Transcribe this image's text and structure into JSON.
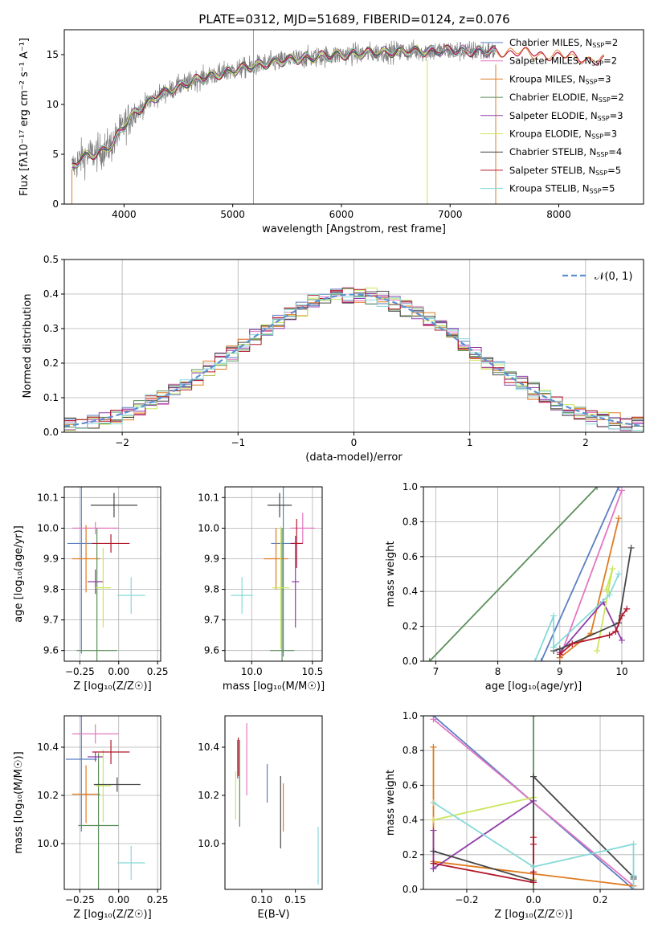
{
  "title": "PLATE=0312, MJD=51689, FIBERID=0124, z=0.076",
  "colors": {
    "Chabrier MILES": "#5b7fc2",
    "Salpeter MILES": "#e377c2",
    "Kroupa MILES": "#e07b1f",
    "Chabrier ELODIE": "#5a8f5a",
    "Salpeter ELODIE": "#8e3ca8",
    "Kroupa ELODIE": "#c9e65a",
    "Chabrier STELIB": "#474747",
    "Salpeter STELIB": "#b2182b",
    "Kroupa STELIB": "#86dad8"
  },
  "chart_data": [
    {
      "id": "spectrum",
      "type": "line",
      "title": "PLATE=0312, MJD=51689, FIBERID=0124, z=0.076",
      "xlabel": "wavelength [Angstrom, rest frame]",
      "ylabel": "Flux [fλ10⁻¹⁷ erg cm⁻² s⁻¹ A⁻¹]",
      "xlim": [
        3450,
        8780
      ],
      "ylim": [
        0,
        17.5
      ],
      "xticks": [
        4000,
        5000,
        6000,
        7000,
        8000
      ],
      "yticks": [
        0,
        5,
        10,
        15
      ],
      "grid": false,
      "legend_position": "right",
      "legend": [
        {
          "label": "Chabrier MILES, N",
          "sub": "SSP",
          "suffix": "=2"
        },
        {
          "label": "Salpeter MILES, N",
          "sub": "SSP",
          "suffix": "=2"
        },
        {
          "label": "Kroupa MILES, N",
          "sub": "SSP",
          "suffix": "=3"
        },
        {
          "label": "Chabrier ELODIE, N",
          "sub": "SSP",
          "suffix": "=2"
        },
        {
          "label": "Salpeter ELODIE, N",
          "sub": "SSP",
          "suffix": "=3"
        },
        {
          "label": "Kroupa ELODIE, N",
          "sub": "SSP",
          "suffix": "=3"
        },
        {
          "label": "Chabrier STELIB, N",
          "sub": "SSP",
          "suffix": "=4"
        },
        {
          "label": "Salpeter STELIB, N",
          "sub": "SSP",
          "suffix": "=5"
        },
        {
          "label": "Kroupa STELIB, N",
          "sub": "SSP",
          "suffix": "=5"
        }
      ],
      "continuum": {
        "x": [
          3520,
          3600,
          3700,
          3800,
          3900,
          4000,
          4100,
          4200,
          4300,
          4500,
          4700,
          5000,
          5300,
          5600,
          6000,
          6500,
          7000,
          7500,
          8000,
          8400
        ],
        "y": [
          3.6,
          4.6,
          5.0,
          5.3,
          6.1,
          7.9,
          9.2,
          10.0,
          10.8,
          11.8,
          12.6,
          13.4,
          14.1,
          14.6,
          15.0,
          15.3,
          15.4,
          15.3,
          14.9,
          14.4
        ]
      },
      "observed_range": [
        3520,
        7420
      ],
      "model_range": [
        3520,
        8420
      ]
    },
    {
      "id": "residuals",
      "type": "line",
      "xlabel": "(data-model)/error",
      "ylabel": "Normed distribution",
      "xlim": [
        -2.5,
        2.5
      ],
      "ylim": [
        0,
        0.5
      ],
      "xticks": [
        -2,
        -1,
        0,
        1,
        2
      ],
      "yticks": [
        0.0,
        0.1,
        0.2,
        0.3,
        0.4,
        0.5
      ],
      "grid": true,
      "legend_position": "top-right",
      "legend": [
        {
          "label": "𝒩(0, 1)"
        }
      ],
      "bin_width": 0.1
    },
    {
      "id": "age-vs-Z",
      "type": "scatter",
      "xlabel": "Z [log₁₀(Z/Z☉)]",
      "ylabel": "age  [log₁₀(age/yr)]",
      "xlim": [
        -0.35,
        0.27
      ],
      "ylim": [
        9.565,
        10.135
      ],
      "xticks": [
        -0.25,
        0.0,
        0.25
      ],
      "xticklabels": [
        "−0.25",
        "0.00",
        "0.25"
      ],
      "yticks": [
        9.6,
        9.7,
        9.8,
        9.9,
        10.0,
        10.1
      ],
      "grid": true,
      "points": [
        {
          "model": "Chabrier MILES",
          "x": -0.24,
          "xerr": 0.09,
          "y": 9.95,
          "yerr": 0.36
        },
        {
          "model": "Salpeter MILES",
          "x": -0.15,
          "xerr": 0.15,
          "y": 10.0,
          "yerr": 0.02
        },
        {
          "model": "Kroupa MILES",
          "x": -0.21,
          "xerr": 0.09,
          "y": 9.9,
          "yerr": 0.11
        },
        {
          "model": "Chabrier ELODIE",
          "x": -0.14,
          "xerr": 0.13,
          "y": 9.6,
          "yerr": 0.4
        },
        {
          "model": "Salpeter ELODIE",
          "x": -0.15,
          "xerr": 0.05,
          "y": 9.825,
          "yerr": 0.04
        },
        {
          "model": "Kroupa ELODIE",
          "x": -0.1,
          "xerr": 0.05,
          "y": 9.805,
          "yerr": 0.13
        },
        {
          "model": "Chabrier STELIB",
          "x": -0.03,
          "xerr": 0.15,
          "y": 10.075,
          "yerr": 0.04
        },
        {
          "model": "Salpeter STELIB",
          "x": -0.05,
          "xerr": 0.12,
          "y": 9.95,
          "yerr": 0.03
        },
        {
          "model": "Kroupa STELIB",
          "x": 0.08,
          "xerr": 0.09,
          "y": 9.78,
          "yerr": 0.06
        }
      ]
    },
    {
      "id": "age-vs-mass",
      "type": "scatter",
      "xlabel": "mass [log₁₀(M/M☉)]",
      "ylabel": "",
      "xlim": [
        9.78,
        10.58
      ],
      "ylim": [
        9.565,
        10.135
      ],
      "xticks": [
        10.0,
        10.5
      ],
      "xticklabels": [
        "10.0",
        "10.5"
      ],
      "yticks": [
        9.6,
        9.7,
        9.8,
        9.9,
        10.0,
        10.1
      ],
      "grid": true,
      "points": [
        {
          "model": "Chabrier MILES",
          "x": 10.26,
          "xerr": 0.1,
          "y": 9.95,
          "yerr": 0.37
        },
        {
          "model": "Salpeter MILES",
          "x": 10.42,
          "xerr": 0.1,
          "y": 10.0,
          "yerr": 0.05
        },
        {
          "model": "Kroupa MILES",
          "x": 10.2,
          "xerr": 0.1,
          "y": 9.9,
          "yerr": 0.1
        },
        {
          "model": "Chabrier ELODIE",
          "x": 10.25,
          "xerr": 0.1,
          "y": 9.6,
          "yerr": 0.4
        },
        {
          "model": "Salpeter ELODIE",
          "x": 10.36,
          "xerr": 0.03,
          "y": 9.825,
          "yerr": 0.15
        },
        {
          "model": "Kroupa ELODIE",
          "x": 10.24,
          "xerr": 0.07,
          "y": 9.805,
          "yerr": 0.2
        },
        {
          "model": "Chabrier STELIB",
          "x": 10.23,
          "xerr": 0.1,
          "y": 10.075,
          "yerr": 0.04
        },
        {
          "model": "Salpeter STELIB",
          "x": 10.37,
          "xerr": 0.05,
          "y": 9.95,
          "yerr": 0.08
        },
        {
          "model": "Kroupa STELIB",
          "x": 9.92,
          "xerr": 0.09,
          "y": 9.78,
          "yerr": 0.06
        }
      ]
    },
    {
      "id": "weight-vs-age",
      "type": "line",
      "xlabel": "age  [log₁₀(age/yr)]",
      "ylabel": "mass weight",
      "xlim": [
        6.8,
        10.35
      ],
      "ylim": [
        0,
        1.0
      ],
      "xticks": [
        7,
        8,
        9,
        10
      ],
      "yticks": [
        0.0,
        0.2,
        0.4,
        0.6,
        0.8,
        1.0
      ],
      "grid": true,
      "series": [
        {
          "model": "Chabrier MILES",
          "x": [
            8.7,
            9.95
          ],
          "y": [
            0.0,
            1.0
          ]
        },
        {
          "model": "Salpeter MILES",
          "x": [
            9.0,
            10.0
          ],
          "y": [
            0.02,
            0.98
          ]
        },
        {
          "model": "Kroupa MILES",
          "x": [
            9.0,
            9.5,
            9.95
          ],
          "y": [
            0.02,
            0.16,
            0.82
          ]
        },
        {
          "model": "Chabrier ELODIE",
          "x": [
            6.9,
            9.6
          ],
          "y": [
            0.0,
            1.0
          ]
        },
        {
          "model": "Salpeter ELODIE",
          "x": [
            9.0,
            9.7,
            10.0
          ],
          "y": [
            0.05,
            0.34,
            0.12
          ]
        },
        {
          "model": "Kroupa ELODIE",
          "x": [
            9.6,
            9.85,
            9.75
          ],
          "y": [
            0.06,
            0.53,
            0.41
          ]
        },
        {
          "model": "Chabrier STELIB",
          "x": [
            8.9,
            9.0,
            9.95,
            10.15
          ],
          "y": [
            0.06,
            0.07,
            0.22,
            0.65
          ]
        },
        {
          "model": "Salpeter STELIB",
          "x": [
            9.0,
            9.2,
            9.8,
            9.9,
            10.0,
            10.08
          ],
          "y": [
            0.04,
            0.1,
            0.15,
            0.17,
            0.26,
            0.3
          ]
        },
        {
          "model": "Kroupa STELIB",
          "x": [
            8.6,
            8.9,
            8.9,
            9.8,
            9.95
          ],
          "y": [
            0.0,
            0.26,
            0.08,
            0.38,
            0.5
          ]
        }
      ]
    },
    {
      "id": "mass-vs-Z",
      "type": "scatter",
      "xlabel": "Z [log₁₀(Z/Z☉)]",
      "ylabel": "mass [log₁₀(M/M☉)]",
      "xlim": [
        -0.35,
        0.27
      ],
      "ylim": [
        9.81,
        10.53
      ],
      "xticks": [
        -0.25,
        0.0,
        0.25
      ],
      "xticklabels": [
        "−0.25",
        "0.00",
        "0.25"
      ],
      "yticks": [
        10.0,
        10.2,
        10.4
      ],
      "grid": true,
      "points": [
        {
          "model": "Chabrier MILES",
          "x": -0.24,
          "xerr": 0.1,
          "y": 10.35,
          "yerr": 0.3
        },
        {
          "model": "Salpeter MILES",
          "x": -0.15,
          "xerr": 0.15,
          "y": 10.455,
          "yerr": 0.04
        },
        {
          "model": "Kroupa MILES",
          "x": -0.21,
          "xerr": 0.09,
          "y": 10.205,
          "yerr": 0.12
        },
        {
          "model": "Chabrier ELODIE",
          "x": -0.13,
          "xerr": 0.13,
          "y": 10.075,
          "yerr": 0.3
        },
        {
          "model": "Salpeter ELODIE",
          "x": -0.15,
          "xerr": 0.05,
          "y": 10.36,
          "yerr": 0.02
        },
        {
          "model": "Kroupa ELODIE",
          "x": -0.1,
          "xerr": 0.05,
          "y": 10.24,
          "yerr": 0.15
        },
        {
          "model": "Chabrier STELIB",
          "x": -0.01,
          "xerr": 0.15,
          "y": 10.245,
          "yerr": 0.03
        },
        {
          "model": "Salpeter STELIB",
          "x": -0.05,
          "xerr": 0.12,
          "y": 10.38,
          "yerr": 0.05
        },
        {
          "model": "Kroupa STELIB",
          "x": 0.08,
          "xerr": 0.09,
          "y": 9.92,
          "yerr": 0.07
        }
      ]
    },
    {
      "id": "mass-vs-ebv",
      "type": "scatter",
      "xlabel": "E(B-V)",
      "ylabel": "",
      "xlim": [
        0.045,
        0.19
      ],
      "ylim": [
        9.81,
        10.53
      ],
      "xticks": [
        0.1,
        0.15
      ],
      "xticklabels": [
        "0.10",
        "0.15"
      ],
      "yticks": [
        10.0,
        10.2,
        10.4
      ],
      "grid": false,
      "points": [
        {
          "model": "Chabrier MILES",
          "x": 0.108,
          "y": 10.25,
          "yerr": 0.08
        },
        {
          "model": "Salpeter MILES",
          "x": 0.0775,
          "y": 10.35,
          "yerr": 0.15
        },
        {
          "model": "Kroupa MILES",
          "x": 0.132,
          "y": 10.15,
          "yerr": 0.1
        },
        {
          "model": "Chabrier ELODIE",
          "x": 0.067,
          "y": 10.25,
          "yerr": 0.18
        },
        {
          "model": "Salpeter ELODIE",
          "x": 0.064,
          "y": 10.35,
          "yerr": 0.08
        },
        {
          "model": "Kroupa ELODIE",
          "x": 0.061,
          "y": 10.2,
          "yerr": 0.1
        },
        {
          "model": "Chabrier STELIB",
          "x": 0.128,
          "y": 10.13,
          "yerr": 0.15
        },
        {
          "model": "Salpeter STELIB",
          "x": 0.065,
          "y": 10.36,
          "yerr": 0.08
        },
        {
          "model": "Kroupa STELIB",
          "x": 0.184,
          "y": 9.95,
          "yerr": 0.12
        }
      ]
    },
    {
      "id": "weight-vs-Z",
      "type": "line",
      "xlabel": "Z [log₁₀(Z/Z☉)]",
      "ylabel": "mass weight",
      "xlim": [
        -0.33,
        0.33
      ],
      "ylim": [
        0,
        1.0
      ],
      "xticks": [
        -0.2,
        0.0,
        0.2
      ],
      "xticklabels": [
        "−0.2",
        "0.0",
        "0.2"
      ],
      "yticks": [
        0.0,
        0.2,
        0.4,
        0.6,
        0.8,
        1.0
      ],
      "grid": true,
      "series": [
        {
          "model": "Chabrier MILES",
          "x": [
            -0.3,
            0.3
          ],
          "y": [
            1.0,
            0.0
          ]
        },
        {
          "model": "Salpeter MILES",
          "x": [
            -0.3,
            0.3
          ],
          "y": [
            0.98,
            0.02
          ]
        },
        {
          "model": "Kroupa MILES",
          "x": [
            -0.3,
            -0.3,
            0.0,
            0.3
          ],
          "y": [
            0.82,
            0.16,
            0.09,
            0.02
          ]
        },
        {
          "model": "Chabrier ELODIE",
          "x": [
            0.0,
            0.0
          ],
          "y": [
            0.0,
            1.0
          ]
        },
        {
          "model": "Salpeter ELODIE",
          "x": [
            -0.3,
            -0.3,
            0.0,
            -0.3
          ],
          "y": [
            0.34,
            0.12,
            0.51,
            0.12
          ]
        },
        {
          "model": "Kroupa ELODIE",
          "x": [
            -0.3,
            0.0,
            0.0
          ],
          "y": [
            0.4,
            0.53,
            0.06
          ]
        },
        {
          "model": "Chabrier STELIB",
          "x": [
            -0.3,
            0.0,
            0.0,
            0.3,
            0.3
          ],
          "y": [
            0.22,
            0.05,
            0.65,
            0.07,
            0.06
          ]
        },
        {
          "model": "Salpeter STELIB",
          "x": [
            -0.3,
            0.0,
            0.0,
            0.0,
            0.0
          ],
          "y": [
            0.15,
            0.04,
            0.3,
            0.26,
            0.1
          ]
        },
        {
          "model": "Kroupa STELIB",
          "x": [
            -0.3,
            0.0,
            0.3,
            0.3,
            0.3
          ],
          "y": [
            0.5,
            0.13,
            0.26,
            0.08,
            0.0
          ]
        }
      ]
    }
  ]
}
